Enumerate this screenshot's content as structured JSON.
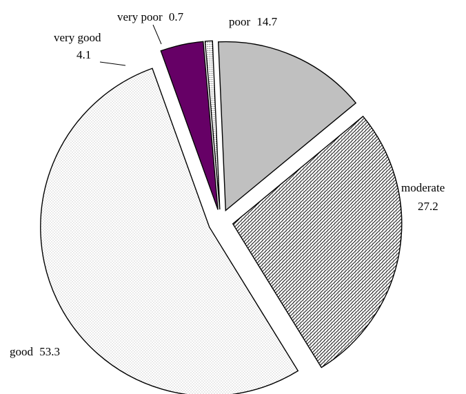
{
  "chart_data": {
    "type": "pie",
    "categories": [
      "very poor",
      "poor",
      "moderate",
      "good",
      "very good"
    ],
    "values": [
      0.7,
      14.7,
      27.2,
      53.3,
      4.1
    ],
    "labels": [
      {
        "name": "very poor",
        "value": "0.7"
      },
      {
        "name": "poor",
        "value": "14.7"
      },
      {
        "name": "moderate",
        "value": "27.2"
      },
      {
        "name": "good",
        "value": "53.3"
      },
      {
        "name": "very good",
        "value": "4.1"
      }
    ],
    "exploded": true,
    "title": "",
    "legend": "none",
    "colors": {
      "very poor": "#ffffff",
      "poor": "#c0c0c0",
      "moderate": "#ffffff",
      "good": "#ffffff",
      "very good": "#660066"
    },
    "patterns": {
      "very poor": "fine-dots",
      "poor": "solid-gray",
      "moderate": "diagonal-crosshatch",
      "good": "fine-dots",
      "very good": "solid-purple"
    }
  }
}
